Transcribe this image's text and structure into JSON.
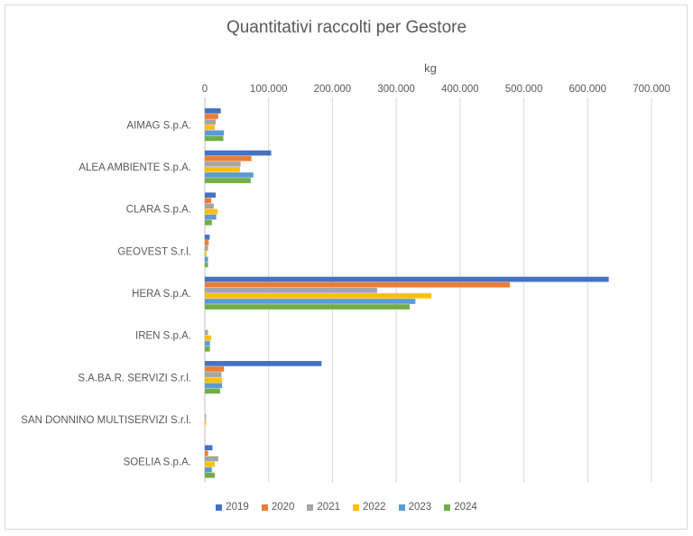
{
  "chart_data": {
    "type": "bar",
    "orientation": "horizontal",
    "title": "Quantitativi raccolti per Gestore",
    "xlabel": "kg",
    "xlim": [
      0,
      700000
    ],
    "xticks": [
      0,
      100000,
      200000,
      300000,
      400000,
      500000,
      600000,
      700000
    ],
    "xtick_labels": [
      "0",
      "100.000",
      "200.000",
      "300.000",
      "400.000",
      "500.000",
      "600.000",
      "700.000"
    ],
    "grid": true,
    "legend_position": "bottom",
    "categories": [
      "AIMAG S.p.A.",
      "ALEA AMBIENTE S.p.A.",
      "CLARA S.p.A.",
      "GEOVEST S.r.l.",
      "HERA S.p.A.",
      "IREN S.p.A.",
      "S.A.BA.R. SERVIZI S.r.l.",
      "SAN DONNINO MULTISERVIZI S.r.l.",
      "SOELIA S.p.A."
    ],
    "series": [
      {
        "name": "2019",
        "color": "#4472c4",
        "values": [
          25000,
          104000,
          17000,
          7500,
          633000,
          0,
          183000,
          0,
          12000
        ]
      },
      {
        "name": "2020",
        "color": "#ed7d31",
        "values": [
          21000,
          73000,
          10000,
          6000,
          478000,
          0,
          30000,
          0,
          5000
        ]
      },
      {
        "name": "2021",
        "color": "#a5a5a5",
        "values": [
          17000,
          56000,
          14000,
          5000,
          270000,
          5000,
          26000,
          2000,
          21000
        ]
      },
      {
        "name": "2022",
        "color": "#ffc000",
        "values": [
          15500,
          55000,
          20000,
          2500,
          355000,
          10000,
          27000,
          2000,
          15500
        ]
      },
      {
        "name": "2023",
        "color": "#5b9bd5",
        "values": [
          30000,
          76000,
          18000,
          5000,
          330000,
          8000,
          27000,
          0,
          11000
        ]
      },
      {
        "name": "2024",
        "color": "#70ad47",
        "values": [
          29000,
          72000,
          11000,
          5000,
          321000,
          8000,
          24000,
          0,
          15500
        ]
      }
    ]
  }
}
